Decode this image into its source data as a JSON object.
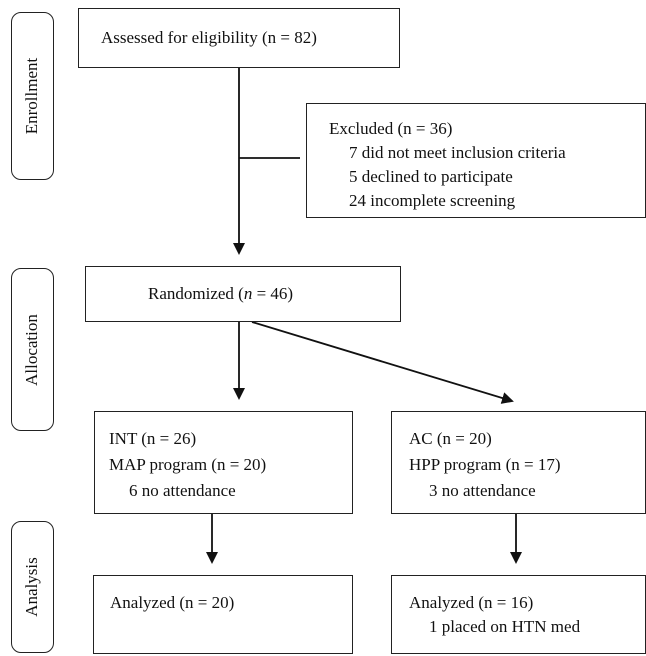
{
  "stages": {
    "enrollment": "Enrollment",
    "allocation": "Allocation",
    "analysis": "Analysis"
  },
  "assessed": {
    "text": "Assessed for eligibility (n = 82)"
  },
  "excluded": {
    "title": "Excluded (n = 36)",
    "reasons": [
      "7 did not meet inclusion criteria",
      "5 declined to participate",
      "24 incomplete screening"
    ]
  },
  "randomized": {
    "prefix": "Randomized (",
    "n_letter": "n",
    "suffix": " = 46)"
  },
  "int_group": {
    "line1": "INT (n = 26)",
    "line2": "MAP program (n = 20)",
    "line3": "6 no attendance"
  },
  "ac_group": {
    "line1": "AC (n = 20)",
    "line2": "HPP program (n = 17)",
    "line3": "3 no attendance"
  },
  "int_analyzed": {
    "line1": "Analyzed (n = 20)"
  },
  "ac_analyzed": {
    "line1": "Analyzed (n = 16)",
    "line2": "1 placed on HTN med"
  }
}
